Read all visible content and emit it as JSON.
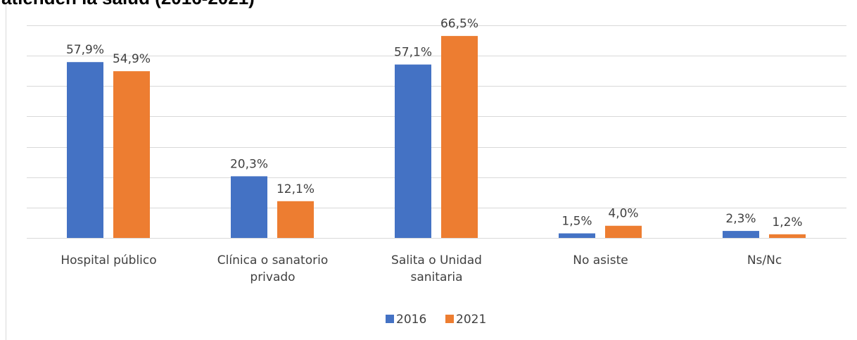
{
  "chart_data": {
    "type": "bar",
    "title": "atienden la salud (2016-2021)",
    "categories": [
      "Hospital público",
      "Clínica o sanatorio privado",
      "Salita o Unidad sanitaria",
      "No asiste",
      "Ns/Nc"
    ],
    "series": [
      {
        "name": "2016",
        "color": "#4472c4",
        "values": [
          57.9,
          20.3,
          57.1,
          1.5,
          2.3
        ],
        "value_labels": [
          "57,9%",
          "20,3%",
          "57,1%",
          "1,5%",
          "2,3%"
        ]
      },
      {
        "name": "2021",
        "color": "#ed7d31",
        "values": [
          54.9,
          12.1,
          66.5,
          4.0,
          1.2
        ],
        "value_labels": [
          "54,9%",
          "12,1%",
          "66,5%",
          "4,0%",
          "1,2%"
        ]
      }
    ],
    "ylim": [
      0,
      70
    ],
    "yticks": [
      0,
      10,
      20,
      30,
      40,
      50,
      60,
      70
    ],
    "grid": true,
    "legend": "bottom"
  }
}
